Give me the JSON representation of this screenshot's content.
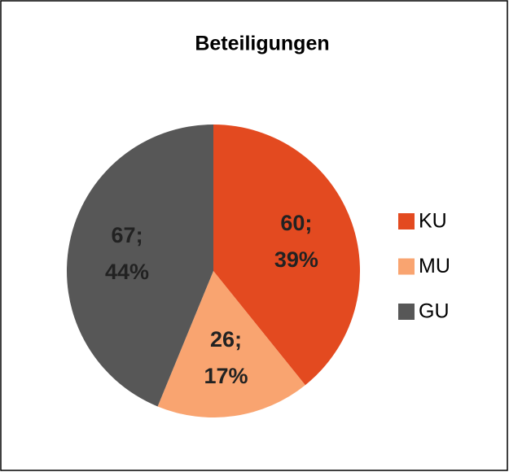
{
  "chart_data": {
    "type": "pie",
    "title": "Beteiligungen",
    "categories": [
      "KU",
      "MU",
      "GU"
    ],
    "values": [
      60,
      26,
      67
    ],
    "value_labels": [
      "60; 39%",
      "26; 17%",
      "67; 44%"
    ],
    "colors": [
      "#e34a20",
      "#f9a470",
      "#575757"
    ],
    "legend": "right"
  }
}
